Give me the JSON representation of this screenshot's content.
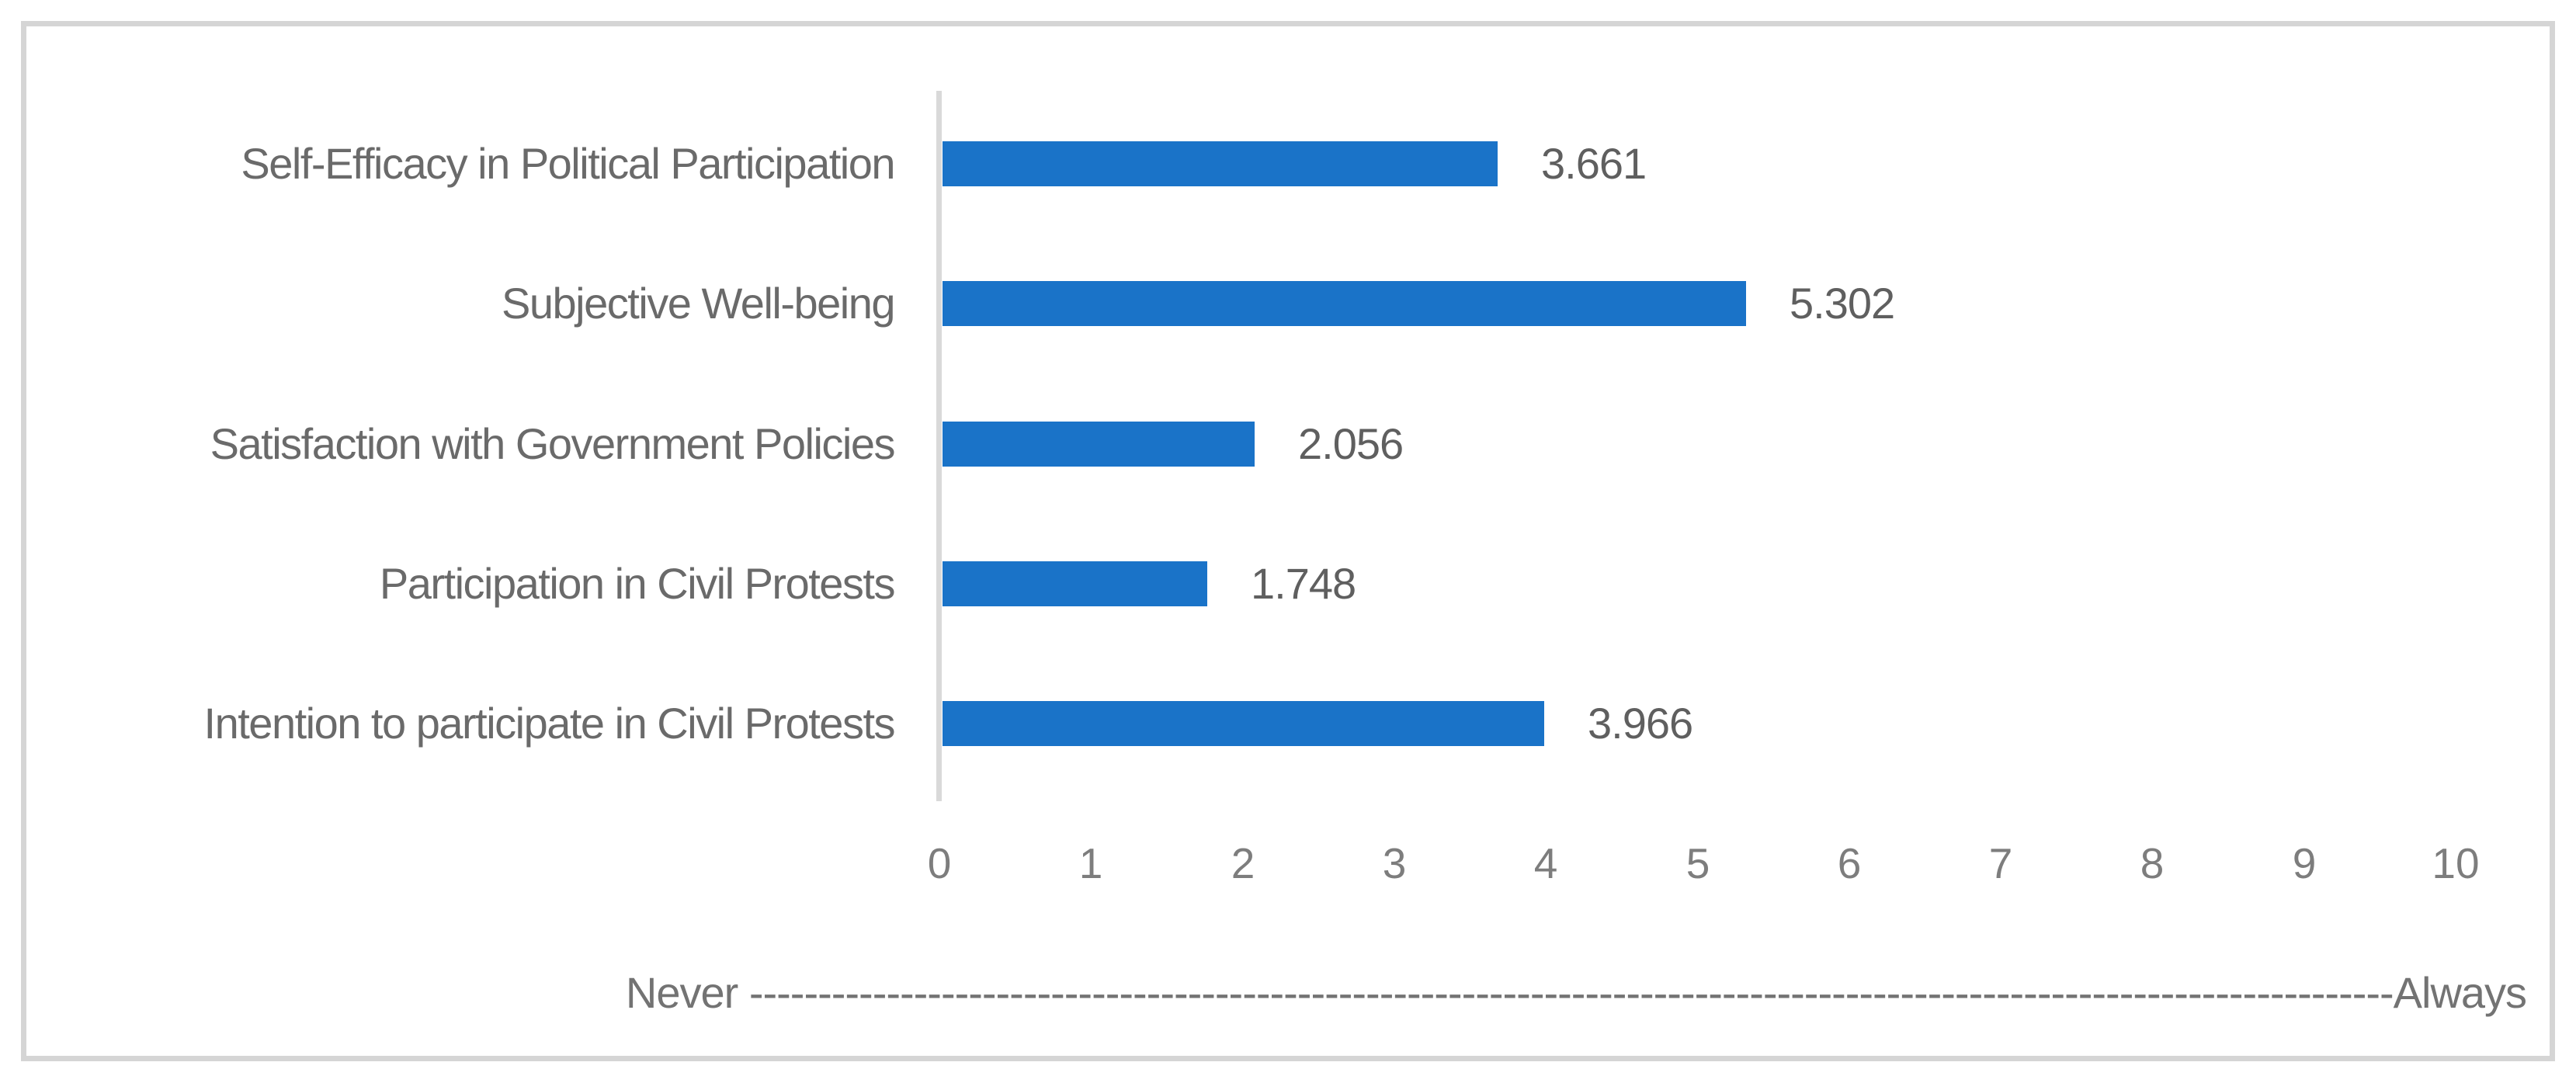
{
  "chart_data": {
    "type": "bar",
    "orientation": "horizontal",
    "title": "",
    "categories": [
      "Self-Efficacy in Political Participation",
      "Subjective Well-being",
      "Satisfaction with Government Policies",
      "Participation in Civil Protests",
      "Intention to participate in Civil Protests"
    ],
    "values": [
      3.661,
      5.302,
      2.056,
      1.748,
      3.966
    ],
    "value_labels": [
      "3.661",
      "5.302",
      "2.056",
      "1.748",
      "3.966"
    ],
    "xlim": [
      0,
      10
    ],
    "xticks": [
      "0",
      "1",
      "2",
      "3",
      "4",
      "5",
      "6",
      "7",
      "8",
      "9",
      "10"
    ],
    "xlabel": "Never ------------------------------------------------------------------------------------------------------------------------Always",
    "grid": false,
    "legend_position": "none",
    "bar_color": "#1a73c8",
    "category_text_color": "#6a6a6a",
    "value_text_color": "#5f5f5f",
    "tick_text_color": "#7d7d7d",
    "axis_title_text_color": "#737373",
    "axis_line_color": "#d9d9d9",
    "frame_border_color": "#d5d5d5",
    "background_color": "#ffffff"
  }
}
